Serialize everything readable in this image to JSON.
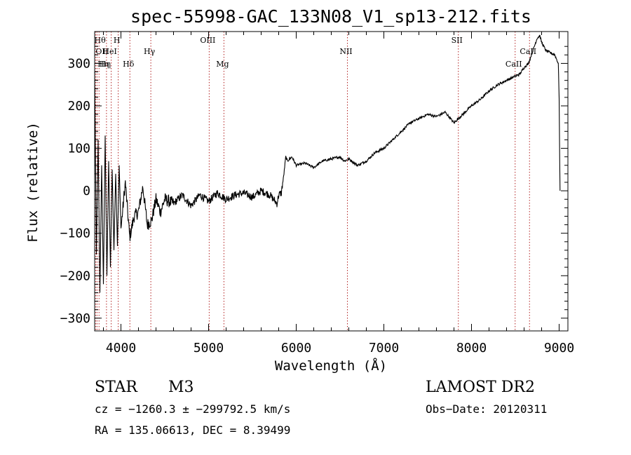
{
  "chart_data": {
    "type": "line",
    "title": "spec-55998-GAC_133N08_V1_sp13-212.fits",
    "xlabel": "Wavelength (Å)",
    "ylabel": "Flux (relative)",
    "xlim": [
      3700,
      9100
    ],
    "ylim": [
      -330,
      375
    ],
    "xticks": [
      4000,
      5000,
      6000,
      7000,
      8000,
      9000
    ],
    "yticks": [
      -300,
      -200,
      -100,
      0,
      100,
      200,
      300
    ],
    "series": [
      {
        "x": [
          3700,
          3720,
          3740,
          3760,
          3780,
          3800,
          3820,
          3840,
          3860,
          3880,
          3900,
          3920,
          3940,
          3960,
          3980,
          4000,
          4050,
          4100,
          4150,
          4200,
          4250,
          4300,
          4350,
          4400,
          4450,
          4500,
          4600,
          4700,
          4800,
          4900,
          5000,
          5100,
          5200,
          5300,
          5400,
          5500,
          5600,
          5700,
          5780,
          5800,
          5830,
          5860,
          5880,
          5900,
          5950,
          6000,
          6100,
          6200,
          6300,
          6400,
          6500,
          6550,
          6600,
          6700,
          6800,
          6900,
          7000,
          7100,
          7200,
          7300,
          7400,
          7500,
          7600,
          7700,
          7800,
          7850,
          7900,
          8000,
          8100,
          8200,
          8300,
          8400,
          8500,
          8550,
          8600,
          8650,
          8700,
          8750,
          8780,
          8800,
          8850,
          8900,
          8950,
          8990,
          9000,
          9010
        ],
        "y": [
          280,
          -150,
          120,
          -240,
          60,
          -220,
          130,
          -200,
          70,
          -180,
          50,
          -140,
          40,
          -130,
          60,
          -90,
          20,
          -110,
          -60,
          -50,
          10,
          -80,
          -70,
          -20,
          -50,
          -20,
          -30,
          -10,
          -35,
          -10,
          -25,
          -5,
          -20,
          -10,
          -5,
          -15,
          0,
          -10,
          -30,
          -10,
          -5,
          40,
          80,
          70,
          80,
          60,
          65,
          55,
          70,
          75,
          80,
          70,
          75,
          60,
          70,
          90,
          100,
          120,
          140,
          160,
          170,
          180,
          175,
          185,
          160,
          170,
          180,
          200,
          215,
          235,
          250,
          260,
          270,
          275,
          290,
          300,
          330,
          360,
          365,
          350,
          330,
          325,
          320,
          300,
          220,
          0
        ]
      }
    ],
    "lines": [
      {
        "wl": 3712,
        "label": "Hθ",
        "row": 1
      },
      {
        "wl": 3727,
        "label": "OII",
        "row": 2
      },
      {
        "wl": 3750,
        "label": "Hη",
        "row": 3
      },
      {
        "wl": 3835,
        "label": "Hη",
        "row": 3
      },
      {
        "wl": 3889,
        "label": "HeI",
        "row": 2
      },
      {
        "wl": 3969,
        "label": "H",
        "row": 1
      },
      {
        "wl": 4102,
        "label": "Hδ",
        "row": 3
      },
      {
        "wl": 4341,
        "label": "Hγ",
        "row": 2
      },
      {
        "wl": 5007,
        "label": "OIII",
        "row": 1
      },
      {
        "wl": 5175,
        "label": "Mg",
        "row": 3
      },
      {
        "wl": 6584,
        "label": "NII",
        "row": 2
      },
      {
        "wl": 7850,
        "label": "SII",
        "row": 1
      },
      {
        "wl": 8498,
        "label": "CaII",
        "row": 3
      },
      {
        "wl": 8662,
        "label": "CaII",
        "row": 2
      }
    ]
  },
  "info": {
    "class": "STAR",
    "subclass": "M3",
    "survey": "LAMOST DR2",
    "cz": "cz = −1260.3 ± −299792.5 km/s",
    "obsdate": "Obs−Date: 20120311",
    "radec": "RA = 135.06613, DEC =    8.39499"
  }
}
